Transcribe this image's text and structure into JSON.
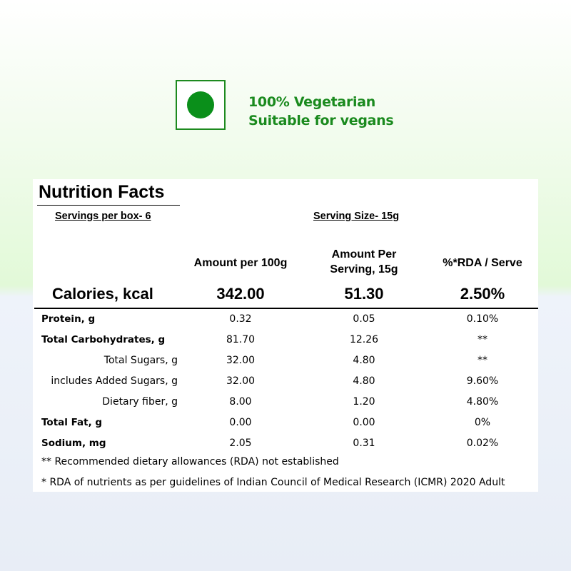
{
  "veg": {
    "line1": "100% Vegetarian",
    "line2": "Suitable for vegans",
    "badge_color": "#0a8f1a",
    "icon": "veg-symbol-icon"
  },
  "nutrition": {
    "title": "Nutrition Facts",
    "servings_per_box": "Servings per box- 6",
    "serving_size": "Serving Size- 15g",
    "columns": {
      "per100g": "Amount per 100g",
      "per_serving_line1": "Amount Per",
      "per_serving_line2": "Serving, 15g",
      "rda": "%*RDA / Serve"
    },
    "calories": {
      "label": "Calories, kcal",
      "per100g": "342.00",
      "per_serving": "51.30",
      "rda": "2.50%"
    },
    "rows": [
      {
        "label": "Protein, g",
        "per100g": "0.32",
        "per_serving": "0.05",
        "rda": "0.10%"
      },
      {
        "label": "Total Carbohydrates, g",
        "per100g": "81.70",
        "per_serving": "12.26",
        "rda": "**"
      },
      {
        "label": "Total Sugars, g",
        "per100g": "32.00",
        "per_serving": "4.80",
        "rda": "**"
      },
      {
        "label": "includes Added Sugars, g",
        "per100g": "32.00",
        "per_serving": "4.80",
        "rda": "9.60%"
      },
      {
        "label": "Dietary fiber,  g",
        "per100g": "8.00",
        "per_serving": "1.20",
        "rda": "4.80%"
      },
      {
        "label": "Total Fat, g",
        "per100g": "0.00",
        "per_serving": "0.00",
        "rda": "0%"
      },
      {
        "label": "Sodium, mg",
        "per100g": "2.05",
        "per_serving": "0.31",
        "rda": "0.02%"
      }
    ],
    "footnote1": "** Recommended dietary allowances (RDA) not established",
    "footnote2": "* RDA of nutrients as per guidelines of Indian Council of Medical Research (ICMR) 2020 Adult"
  }
}
